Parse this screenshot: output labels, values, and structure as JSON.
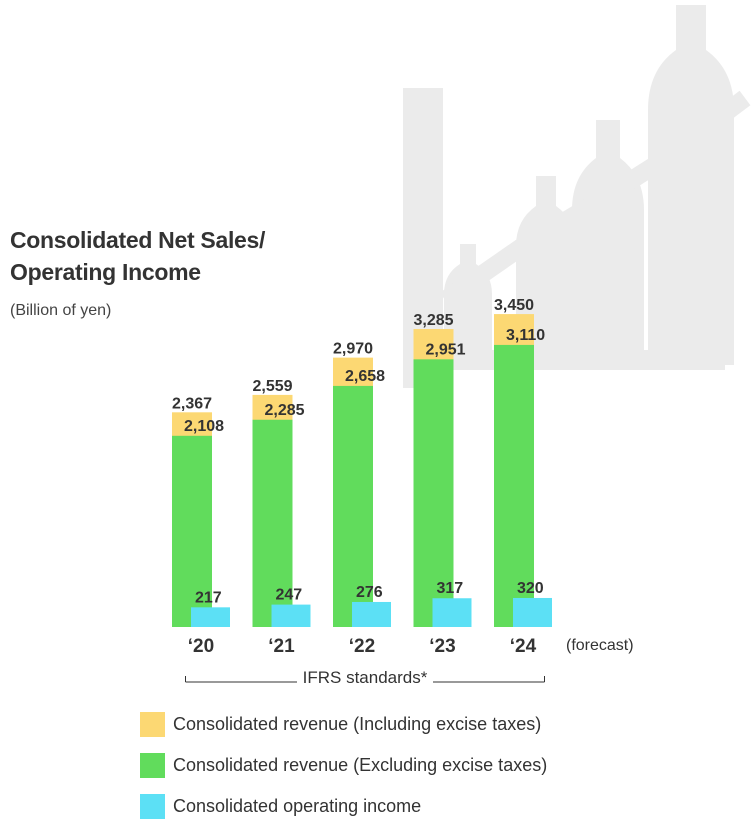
{
  "title_line1": "Consolidated Net Sales/",
  "title_line2": "Operating Income",
  "unit": "(Billion of yen)",
  "forecast_note": "(forecast)",
  "ifrs_label": "IFRS standards*",
  "colors": {
    "incl_excise": "#FCD873",
    "excl_excise": "#61DC5C",
    "operating_income": "#5CE0F5",
    "background_art": "#EBEBEB"
  },
  "legend": [
    {
      "label": "Consolidated revenue (Including excise taxes)",
      "color": "#FCD873"
    },
    {
      "label": "Consolidated revenue (Excluding excise taxes)",
      "color": "#61DC5C"
    },
    {
      "label": "Consolidated operating income",
      "color": "#5CE0F5"
    }
  ],
  "chart_data": {
    "type": "bar",
    "title": "Consolidated Net Sales/ Operating Income",
    "ylabel": "(Billion of yen)",
    "categories": [
      "‘20",
      "‘21",
      "‘22",
      "‘23",
      "‘24"
    ],
    "series": [
      {
        "name": "Consolidated revenue (Including excise taxes)",
        "values": [
          2367,
          2559,
          2970,
          3285,
          3450
        ],
        "labels": [
          "2,367",
          "2,559",
          "2,970",
          "3,285",
          "3,450"
        ]
      },
      {
        "name": "Consolidated revenue (Excluding excise taxes)",
        "values": [
          2108,
          2285,
          2658,
          2951,
          3110
        ],
        "labels": [
          "2,108",
          "2,285",
          "2,658",
          "2,951",
          "3,110"
        ]
      },
      {
        "name": "Consolidated operating income",
        "values": [
          217,
          247,
          276,
          317,
          320
        ],
        "labels": [
          "217",
          "247",
          "276",
          "317",
          "320"
        ]
      }
    ],
    "forecast_category": "‘24"
  }
}
